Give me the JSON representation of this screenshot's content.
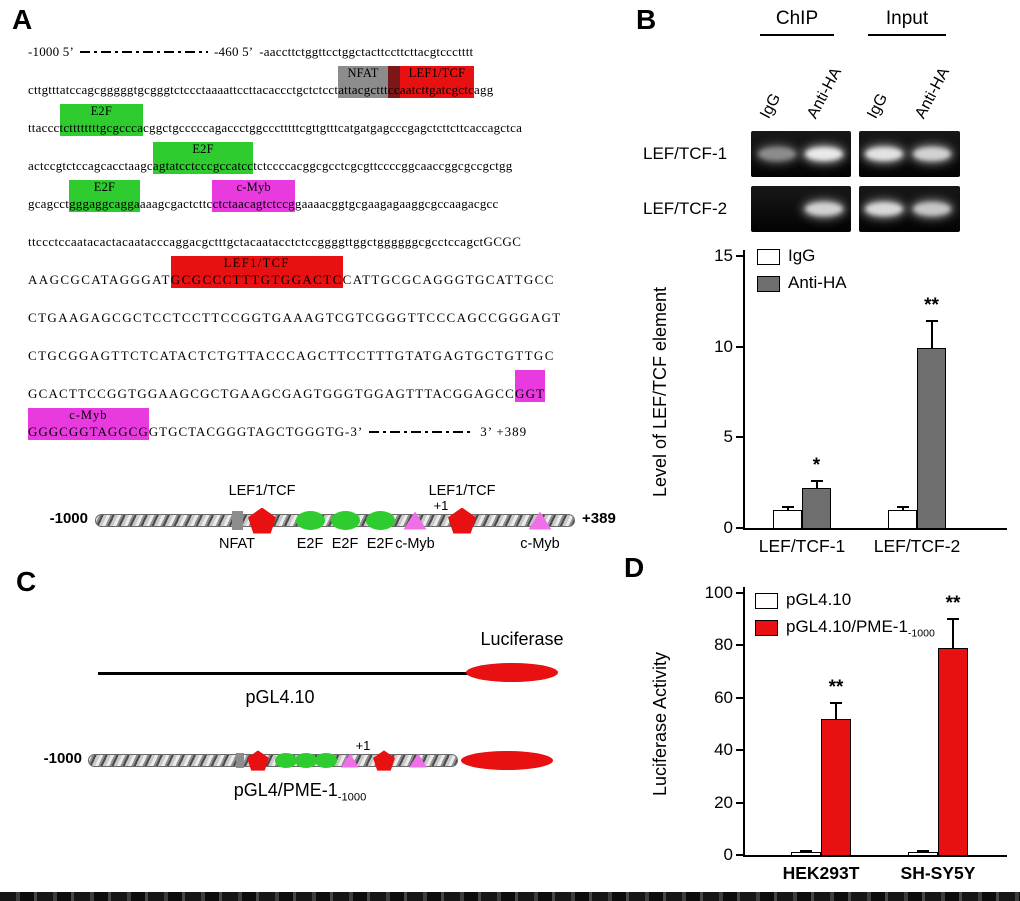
{
  "colors": {
    "red": "#e81010",
    "darkred": "#7d1616",
    "green": "#2ecc2e",
    "magenta": "#e93ae0",
    "gray": "#8c8c8c",
    "pink": "#ef6fe8",
    "bar_gray": "#6e6e6e"
  },
  "panelA": {
    "label": "A",
    "sequence": [
      {
        "segs": [
          {
            "t": "-1000 5’"
          },
          {
            "gap": true,
            "w": 128
          },
          {
            "t": "-460 5’  -aaccttctggttcctggctacttccttcttacgtccctttt"
          }
        ]
      },
      {
        "segs": [
          {
            "t": "cttgtttatccagcgggggtgcgggtctccctaaaattccttacaccctgctctcct"
          },
          {
            "t": "attacgcttt",
            "hl": "gray",
            "label": "NFAT"
          },
          {
            "t": "cc",
            "hl": "darkred",
            "label": ""
          },
          {
            "t": "aatcttgatcgctc",
            "hl": "red",
            "label": "LEF1/TCF"
          },
          {
            "t": "agg"
          }
        ]
      },
      {
        "segs": [
          {
            "t": "ttaccc"
          },
          {
            "t": "tcttttttttgcgccca",
            "hl": "green",
            "label": "E2F"
          },
          {
            "t": "cggctgcccccagaccctggccctttttcgttgtttcatgatgagcccgagctcttcttcaccagctca"
          }
        ]
      },
      {
        "segs": [
          {
            "t": "actccgtctccagcacctaagc"
          },
          {
            "t": "agtatcctcccgccatcc",
            "hl": "green",
            "label": "E2F"
          },
          {
            "t": "tctccccacggcgcctcgcgttccccggcaaccggcgccgctgg"
          }
        ]
      },
      {
        "segs": [
          {
            "t": "gcagcct"
          },
          {
            "t": "gggaggcagga",
            "hl": "green",
            "label": "E2F"
          },
          {
            "t": "aaagcgactcttc"
          },
          {
            "t": "ctctaacagtctccg",
            "hl": "magenta",
            "label": "c-Myb"
          },
          {
            "t": "gaaaacggtgcgaagagaaggcgccaagacgcc"
          }
        ]
      },
      {
        "ls": 0.4,
        "segs": [
          {
            "t": "ttccctccaatacactacaatacccaggacgctttgctacaatacctctccggggttggctggggggcgcctccagctGCGC"
          }
        ]
      },
      {
        "ls": 1.4,
        "segs": [
          {
            "t": "AAGCGCATAGGGAT"
          },
          {
            "t": "GCGCCCTTTGTGGACTC",
            "hl": "red",
            "label": "LEF1/TCF"
          },
          {
            "t": "CATTGCGCAGGGTGCATTGCC"
          }
        ]
      },
      {
        "ls": 1.4,
        "segs": [
          {
            "t": "CTGAAGAGCGCTCCTCCTTCCGGTGAAAGTCGTCGGGTTCCCAGCCGGGAGT"
          }
        ]
      },
      {
        "ls": 1.4,
        "segs": [
          {
            "t": "CTGCGGAGTTCTCATACTCTGTTACCCAGCTTCCTTTGTATGAGTGCTGTTGC"
          }
        ]
      },
      {
        "ls": 1.2,
        "segs": [
          {
            "t": "GCACTTCCGGTGGAAGCGCTGAAGCGAGTGGGTGGAGTTTACGGAGCC"
          },
          {
            "t": "GGT",
            "hl": "magenta",
            "label": ""
          }
        ]
      },
      {
        "ls": 1.0,
        "segs": [
          {
            "t": "GGGCGGTAGGCG",
            "hl": "magenta",
            "label": "c-Myb"
          },
          {
            "t": "GTGCTACGGGTAGCTGGGTG-3’"
          },
          {
            "gap": true,
            "w": 105
          },
          {
            "t": "3’ +389"
          }
        ]
      }
    ],
    "map": {
      "start_label": "-1000",
      "end_label": "+389",
      "elements": [
        {
          "shape": "bar",
          "x": 142,
          "below": "NFAT"
        },
        {
          "shape": "pentagon",
          "x": 167,
          "above": "LEF1/TCF"
        },
        {
          "shape": "oval",
          "x": 215,
          "below": "E2F"
        },
        {
          "shape": "oval",
          "x": 250,
          "below": "E2F"
        },
        {
          "shape": "oval",
          "x": 285,
          "below": "E2F"
        },
        {
          "shape": "triangle",
          "x": 320,
          "below": "c-Myb"
        },
        {
          "shape": "pentagon",
          "x": 367,
          "above": "LEF1/TCF",
          "above2": "+1"
        },
        {
          "shape": "triangle",
          "x": 445,
          "below": "c-Myb"
        }
      ]
    }
  },
  "panelB": {
    "label": "B",
    "gel": {
      "groups": [
        "ChIP",
        "Input"
      ],
      "lanes": [
        "IgG",
        "Anti-HA",
        "IgG",
        "Anti-HA"
      ],
      "rows": [
        {
          "label": "LEF/TCF-1",
          "bands": [
            0.55,
            0.95,
            0.92,
            0.85
          ]
        },
        {
          "label": "LEF/TCF-2",
          "bands": [
            0,
            0.85,
            0.88,
            0.8
          ]
        }
      ]
    }
  },
  "panelC": {
    "label": "C",
    "luciferase_label": "Luciferase",
    "constructs": [
      {
        "name": "pGL4.10"
      },
      {
        "name": "pGL4/PME-1",
        "name_sub": "-1000",
        "start_label": "-1000",
        "elements": [
          {
            "shape": "bar",
            "x": 152
          },
          {
            "shape": "pentagon",
            "x": 170
          },
          {
            "shape": "oval",
            "x": 198
          },
          {
            "shape": "oval",
            "x": 218
          },
          {
            "shape": "oval",
            "x": 238
          },
          {
            "shape": "triangle",
            "x": 262
          },
          {
            "shape": "pentagon",
            "x": 296,
            "above2": "+1"
          },
          {
            "shape": "triangle",
            "x": 330
          }
        ]
      }
    ]
  },
  "panelD": {
    "label": "D"
  },
  "chart_data": [
    {
      "type": "bar",
      "panel": "B",
      "title": "",
      "xlabel": "",
      "ylabel": "Level of LEF/TCF element",
      "ylim": [
        0,
        15
      ],
      "yticks": [
        0,
        5,
        10,
        15
      ],
      "grid": false,
      "legend_position": "top-left",
      "categories": [
        "LEF/TCF-1",
        "LEF/TCF-2"
      ],
      "series": [
        {
          "name": "IgG",
          "color": "#ffffff",
          "values": [
            1.0,
            1.0
          ],
          "errors": [
            0.15,
            0.15
          ],
          "sig": [
            "",
            ""
          ]
        },
        {
          "name": "Anti-HA",
          "color": "#6e6e6e",
          "values": [
            2.2,
            9.9
          ],
          "errors": [
            0.4,
            1.5
          ],
          "sig": [
            "*",
            "**"
          ]
        }
      ]
    },
    {
      "type": "bar",
      "panel": "D",
      "title": "",
      "xlabel": "",
      "ylabel": "Luciferase Activity",
      "ylim": [
        0,
        100
      ],
      "yticks": [
        0,
        20,
        40,
        60,
        80,
        100
      ],
      "grid": false,
      "legend_position": "top-left",
      "categories": [
        "HEK293T",
        "SH-SY5Y"
      ],
      "series": [
        {
          "name": "pGL4.10",
          "color": "#ffffff",
          "values": [
            1,
            1
          ],
          "errors": [
            0.4,
            0.4
          ],
          "sig": [
            "",
            ""
          ]
        },
        {
          "name": "pGL4.10/PME-1",
          "name_sub": "-1000",
          "color": "#e81010",
          "values": [
            52,
            79
          ],
          "errors": [
            6,
            11
          ],
          "sig": [
            "**",
            "**"
          ]
        }
      ]
    }
  ]
}
